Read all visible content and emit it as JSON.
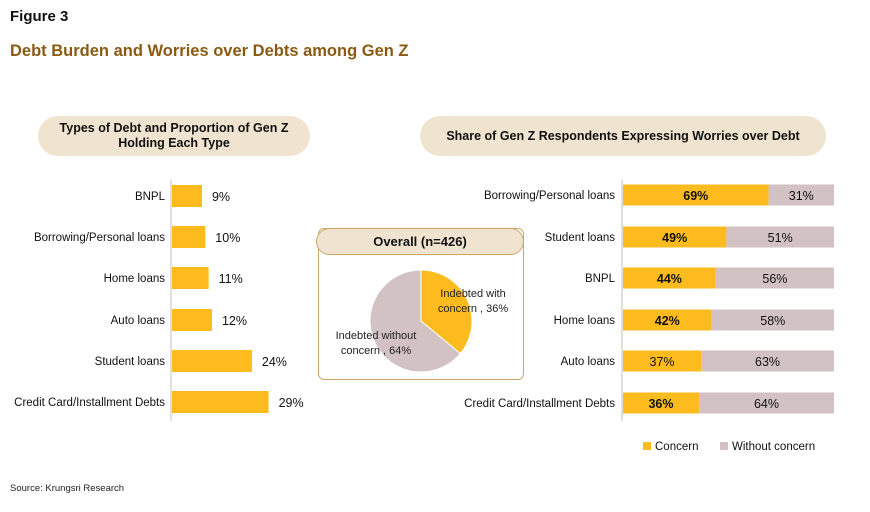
{
  "figure_label": "Figure 3",
  "figure_title": "Debt Burden and Worries over Debts among Gen Z",
  "source": "Source: Krungsri Research",
  "colors": {
    "concern": "#fdbb1e",
    "without_concern": "#d3c2c3",
    "pill_bg": "#f0e4d0",
    "title": "#8a5a12",
    "box_border": "#c9a96a"
  },
  "chart_data": [
    {
      "type": "bar",
      "orientation": "horizontal",
      "title": "Types of Debt and Proportion of Gen Z Holding Each Type",
      "categories": [
        "BNPL",
        "Borrowing/Personal loans",
        "Home loans",
        "Auto loans",
        "Student loans",
        "Credit Card/Installment Debts"
      ],
      "values": [
        9,
        10,
        11,
        12,
        24,
        29
      ],
      "value_labels": [
        "9%",
        "10%",
        "11%",
        "12%",
        "24%",
        "29%"
      ],
      "xlim": [
        0,
        100
      ],
      "unit": "%"
    },
    {
      "type": "pie",
      "title": "Overall  (n=426)",
      "slices": [
        {
          "label": "Indebted with concern , 36%",
          "value": 36,
          "color": "#fdbb1e"
        },
        {
          "label": "Indebted without concern , 64%",
          "value": 64,
          "color": "#d3c2c3"
        }
      ]
    },
    {
      "type": "bar",
      "orientation": "horizontal",
      "stacked": true,
      "title": "Share of Gen Z Respondents Expressing Worries over Debt",
      "categories": [
        "Borrowing/Personal loans",
        "Student loans",
        "BNPL",
        "Home loans",
        "Auto loans",
        "Credit Card/Installment Debts"
      ],
      "series": [
        {
          "name": "Concern",
          "values": [
            69,
            49,
            44,
            42,
            37,
            36
          ],
          "labels": [
            "69%",
            "49%",
            "44%",
            "42%",
            "37%",
            "36%"
          ],
          "bold": [
            true,
            true,
            true,
            true,
            false,
            true
          ]
        },
        {
          "name": "Without concern",
          "values": [
            31,
            51,
            56,
            58,
            63,
            64
          ],
          "labels": [
            "31%",
            "51%",
            "56%",
            "58%",
            "63%",
            "64%"
          ]
        }
      ],
      "xlim": [
        0,
        100
      ],
      "legend": "bottom-right"
    }
  ]
}
